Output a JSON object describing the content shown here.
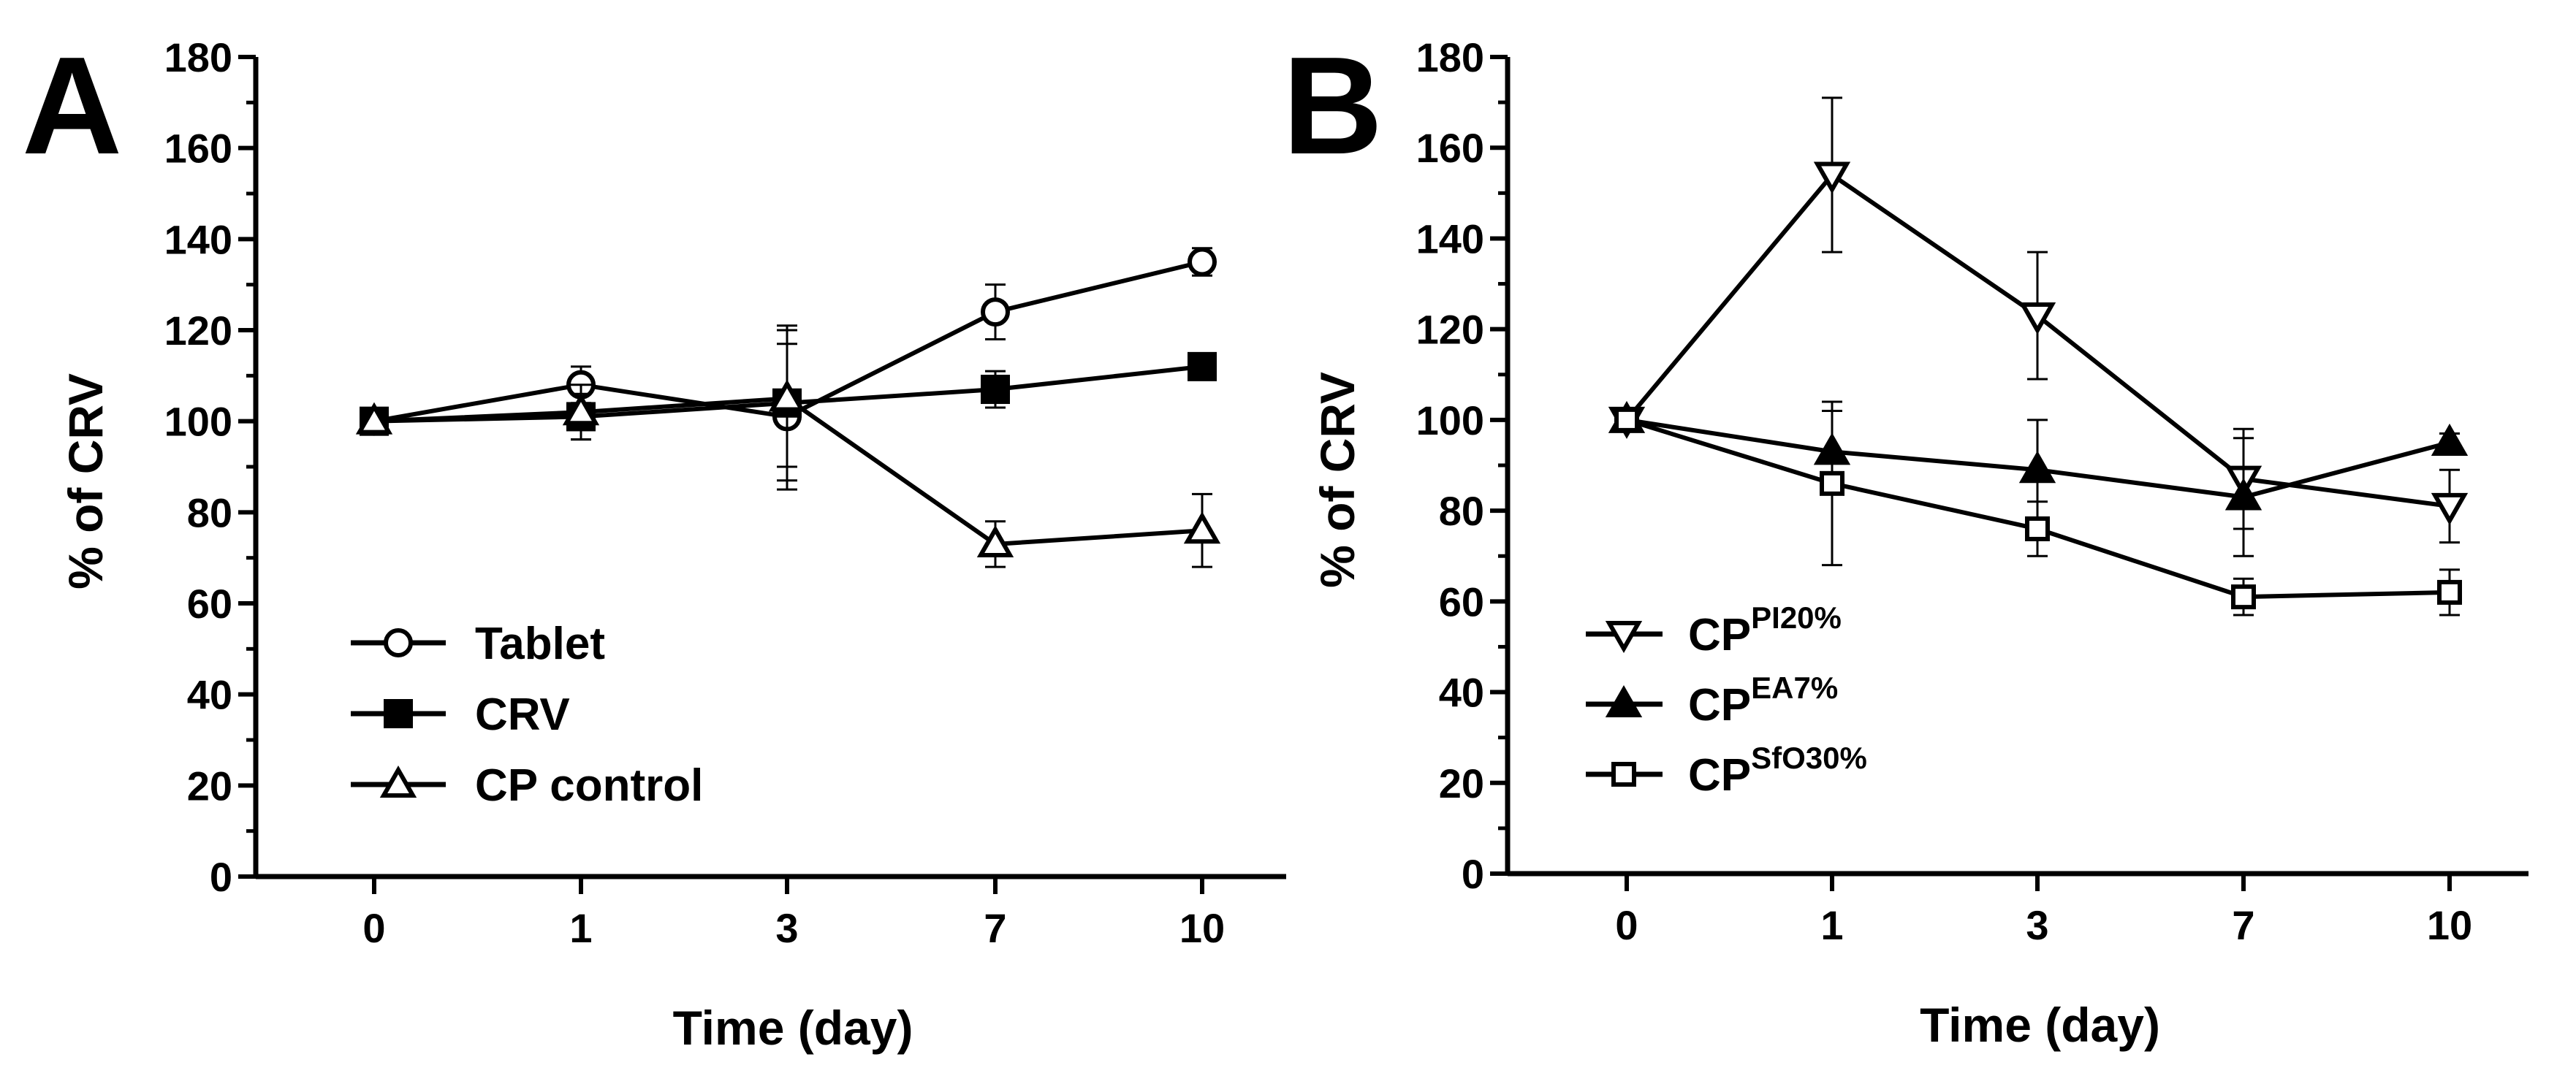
{
  "chart_data": [
    {
      "type": "line",
      "panel_label": "A",
      "xlabel": "Time (day)",
      "ylabel": "% of CRV",
      "categories": [
        "0",
        "1",
        "3",
        "7",
        "10"
      ],
      "ylim": [
        0,
        180
      ],
      "yticks": [
        "0",
        "20",
        "40",
        "60",
        "80",
        "100",
        "120",
        "140",
        "160",
        "180"
      ],
      "grid": false,
      "legend_position": "lower-left",
      "series": [
        {
          "name": "Tablet",
          "marker": "circle-open",
          "values": [
            100,
            108,
            101,
            124,
            135
          ],
          "errors": [
            1,
            4,
            16,
            6,
            3
          ]
        },
        {
          "name": "CRV",
          "marker": "square-filled",
          "values": [
            100,
            101,
            104,
            107,
            112
          ],
          "errors": [
            1,
            5,
            17,
            4,
            2
          ]
        },
        {
          "name": "CP control",
          "marker": "triangle-open",
          "values": [
            100,
            102,
            105,
            73,
            76
          ],
          "errors": [
            1,
            6,
            15,
            5,
            8
          ]
        }
      ]
    },
    {
      "type": "line",
      "panel_label": "B",
      "xlabel": "Time (day)",
      "ylabel": "% of CRV",
      "categories": [
        "0",
        "1",
        "3",
        "7",
        "10"
      ],
      "ylim": [
        0,
        180
      ],
      "yticks": [
        "0",
        "20",
        "40",
        "60",
        "80",
        "100",
        "120",
        "140",
        "160",
        "180"
      ],
      "grid": false,
      "legend_position": "lower-left",
      "series": [
        {
          "name": "CP",
          "superscript": "PI20%",
          "marker": "triangle-down-open",
          "values": [
            100,
            154,
            123,
            87,
            81
          ],
          "errors": [
            1,
            17,
            14,
            11,
            8
          ]
        },
        {
          "name": "CP",
          "superscript": "EA7%",
          "marker": "triangle-filled",
          "values": [
            100,
            93,
            89,
            83,
            95
          ],
          "errors": [
            1,
            9,
            11,
            13,
            2
          ]
        },
        {
          "name": "CP",
          "superscript": "SfO30%",
          "marker": "square-open",
          "values": [
            100,
            86,
            76,
            61,
            62
          ],
          "errors": [
            1,
            18,
            6,
            4,
            5
          ]
        }
      ]
    }
  ]
}
